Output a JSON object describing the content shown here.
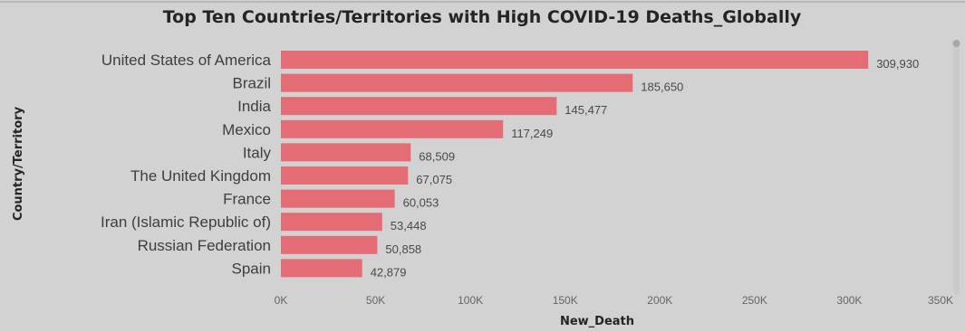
{
  "chart_data": {
    "type": "bar",
    "orientation": "horizontal",
    "title": "Top Ten Countries/Territories with High COVID-19 Deaths_Globally",
    "xlabel": "New_Death",
    "ylabel": "Country/Territory",
    "categories": [
      "United States of America",
      "Brazil",
      "India",
      "Mexico",
      "Italy",
      "The United Kingdom",
      "France",
      "Iran (Islamic Republic of)",
      "Russian Federation",
      "Spain"
    ],
    "values": [
      309930,
      185650,
      145477,
      117249,
      68509,
      67075,
      60053,
      53448,
      50858,
      42879
    ],
    "value_labels": [
      "309,930",
      "185,650",
      "145,477",
      "117,249",
      "68,509",
      "67,075",
      "60,053",
      "53,448",
      "50,858",
      "42,879"
    ],
    "xlim": [
      0,
      350000
    ],
    "xticks": [
      0,
      50000,
      100000,
      150000,
      200000,
      250000,
      300000,
      350000
    ],
    "xtick_labels": [
      "0K",
      "50K",
      "100K",
      "150K",
      "200K",
      "250K",
      "300K",
      "350K"
    ],
    "grid": false,
    "bar_color": "#e36c75"
  }
}
